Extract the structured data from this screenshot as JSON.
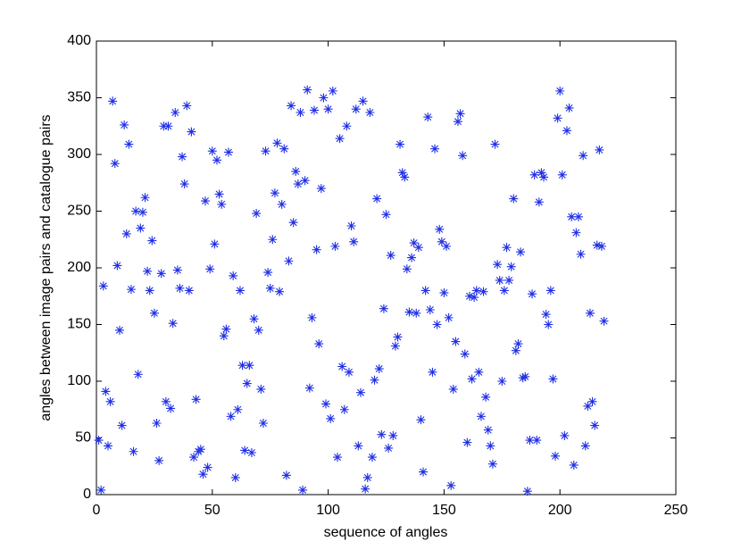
{
  "chart_data": {
    "type": "scatter",
    "x_label": "sequence of angles",
    "y_label": "angles between image pairs and catalogue pairs",
    "xlim": [
      0,
      250
    ],
    "xticks": [
      0,
      50,
      100,
      150,
      200,
      250
    ],
    "ylim": [
      0,
      400
    ],
    "yticks": [
      0,
      50,
      100,
      150,
      200,
      250,
      300,
      350,
      400
    ],
    "grid": false,
    "series": [
      {
        "color": "#1f2fe6",
        "x": [
          1,
          2,
          3,
          4,
          5,
          6,
          7,
          8,
          9,
          10,
          11,
          12,
          13,
          14,
          15,
          16,
          17,
          18,
          19,
          20,
          21,
          22,
          23,
          24,
          25,
          26,
          27,
          28,
          29,
          30,
          31,
          32,
          33,
          34,
          35,
          36,
          37,
          38,
          39,
          40,
          41,
          42,
          43,
          44,
          45,
          46,
          47,
          48,
          49,
          50,
          51,
          52,
          53,
          54,
          55,
          56,
          57,
          58,
          59,
          60,
          61,
          62,
          63,
          64,
          65,
          66,
          67,
          68,
          69,
          70,
          71,
          72,
          73,
          74,
          75,
          76,
          77,
          78,
          79,
          80,
          81,
          82,
          83,
          84,
          85,
          86,
          87,
          88,
          89,
          90,
          91,
          92,
          93,
          94,
          95,
          96,
          97,
          98,
          99,
          100,
          101,
          102,
          103,
          104,
          105,
          106,
          107,
          108,
          109,
          110,
          111,
          112,
          113,
          114,
          115,
          116,
          117,
          118,
          119,
          120,
          121,
          122,
          123,
          124,
          125,
          126,
          127,
          128,
          129,
          130,
          131,
          132,
          133,
          134,
          135,
          136,
          137,
          138,
          139,
          140,
          141,
          142,
          143,
          144,
          145,
          146,
          147,
          148,
          149,
          150,
          151,
          152,
          153,
          154,
          155,
          156,
          157,
          158,
          159,
          160,
          161,
          162,
          163,
          164,
          165,
          166,
          167,
          168,
          169,
          170,
          171,
          172,
          173,
          174,
          175,
          176,
          177,
          178,
          179,
          180,
          181,
          182,
          183,
          184,
          185,
          186,
          187,
          188,
          189,
          190,
          191,
          192,
          193,
          194,
          195,
          196,
          197,
          198,
          199,
          200,
          201,
          202,
          203,
          204,
          205,
          206,
          207,
          208,
          209,
          210,
          211,
          212,
          213,
          214,
          215,
          216,
          217,
          218,
          219
        ],
        "values": [
          48,
          4,
          184,
          91,
          43,
          82,
          347,
          292,
          202,
          145,
          61,
          326,
          230,
          309,
          181,
          38,
          250,
          106,
          235,
          249,
          262,
          197,
          180,
          224,
          160,
          63,
          30,
          195,
          325,
          82,
          325,
          76,
          151,
          337,
          198,
          182,
          298,
          274,
          343,
          180,
          320,
          33,
          84,
          38,
          40,
          18,
          259,
          24,
          199,
          303,
          221,
          295,
          265,
          256,
          140,
          146,
          302,
          69,
          193,
          15,
          75,
          180,
          114,
          39,
          98,
          114,
          37,
          155,
          248,
          145,
          93,
          63,
          303,
          196,
          182,
          225,
          266,
          310,
          179,
          256,
          305,
          17,
          206,
          343,
          240,
          285,
          274,
          337,
          4,
          277,
          357,
          94,
          156,
          339,
          216,
          133,
          270,
          350,
          80,
          340,
          67,
          356,
          219,
          33,
          314,
          113,
          75,
          325,
          108,
          237,
          223,
          340,
          43,
          90,
          347,
          5,
          15,
          337,
          33,
          101,
          261,
          111,
          53,
          164,
          247,
          41,
          211,
          52,
          131,
          139,
          309,
          284,
          280,
          199,
          161,
          209,
          222,
          160,
          218,
          66,
          20,
          180,
          333,
          163,
          108,
          305,
          150,
          234,
          223,
          178,
          219,
          156,
          8,
          93,
          135,
          329,
          336,
          299,
          124,
          46,
          175,
          102,
          174,
          180,
          108,
          69,
          179,
          86,
          57,
          43,
          27,
          309,
          203,
          189,
          100,
          180,
          218,
          189,
          201,
          261,
          127,
          133,
          214,
          103,
          104,
          3,
          48,
          177,
          282,
          48,
          258,
          284,
          280,
          159,
          150,
          180,
          102,
          34,
          332,
          356,
          282,
          52,
          321,
          341,
          245,
          26,
          231,
          245,
          212,
          299,
          43,
          78,
          160,
          82,
          61,
          220,
          304,
          219,
          153
        ]
      }
    ]
  }
}
